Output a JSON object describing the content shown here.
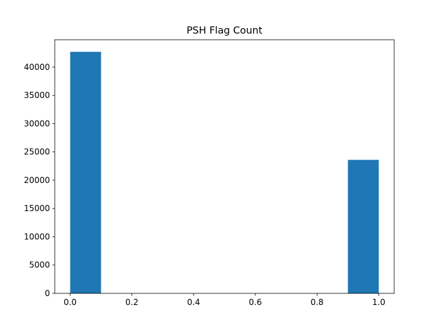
{
  "chart_data": {
    "type": "bar",
    "subtype": "histogram",
    "title": "PSH Flag Count",
    "xlabel": "",
    "ylabel": "",
    "bins": [
      {
        "x0": 0.0,
        "x1": 0.1,
        "count": 42700
      },
      {
        "x0": 0.1,
        "x1": 0.2,
        "count": 0
      },
      {
        "x0": 0.2,
        "x1": 0.3,
        "count": 0
      },
      {
        "x0": 0.3,
        "x1": 0.4,
        "count": 0
      },
      {
        "x0": 0.4,
        "x1": 0.5,
        "count": 0
      },
      {
        "x0": 0.5,
        "x1": 0.6,
        "count": 0
      },
      {
        "x0": 0.6,
        "x1": 0.7,
        "count": 0
      },
      {
        "x0": 0.7,
        "x1": 0.8,
        "count": 0
      },
      {
        "x0": 0.8,
        "x1": 0.9,
        "count": 0
      },
      {
        "x0": 0.9,
        "x1": 1.0,
        "count": 23600
      }
    ],
    "xlim": [
      -0.05,
      1.05
    ],
    "ylim": [
      0,
      44835
    ],
    "x_ticks": [
      0.0,
      0.2,
      0.4,
      0.6,
      0.8,
      1.0
    ],
    "x_tick_labels": [
      "0.0",
      "0.2",
      "0.4",
      "0.6",
      "0.8",
      "1.0"
    ],
    "y_ticks": [
      0,
      5000,
      10000,
      15000,
      20000,
      25000,
      30000,
      35000,
      40000
    ],
    "y_tick_labels": [
      "0",
      "5000",
      "10000",
      "15000",
      "20000",
      "25000",
      "30000",
      "35000",
      "40000"
    ],
    "grid": false,
    "legend": "none",
    "bar_color": "#1f77b4"
  }
}
